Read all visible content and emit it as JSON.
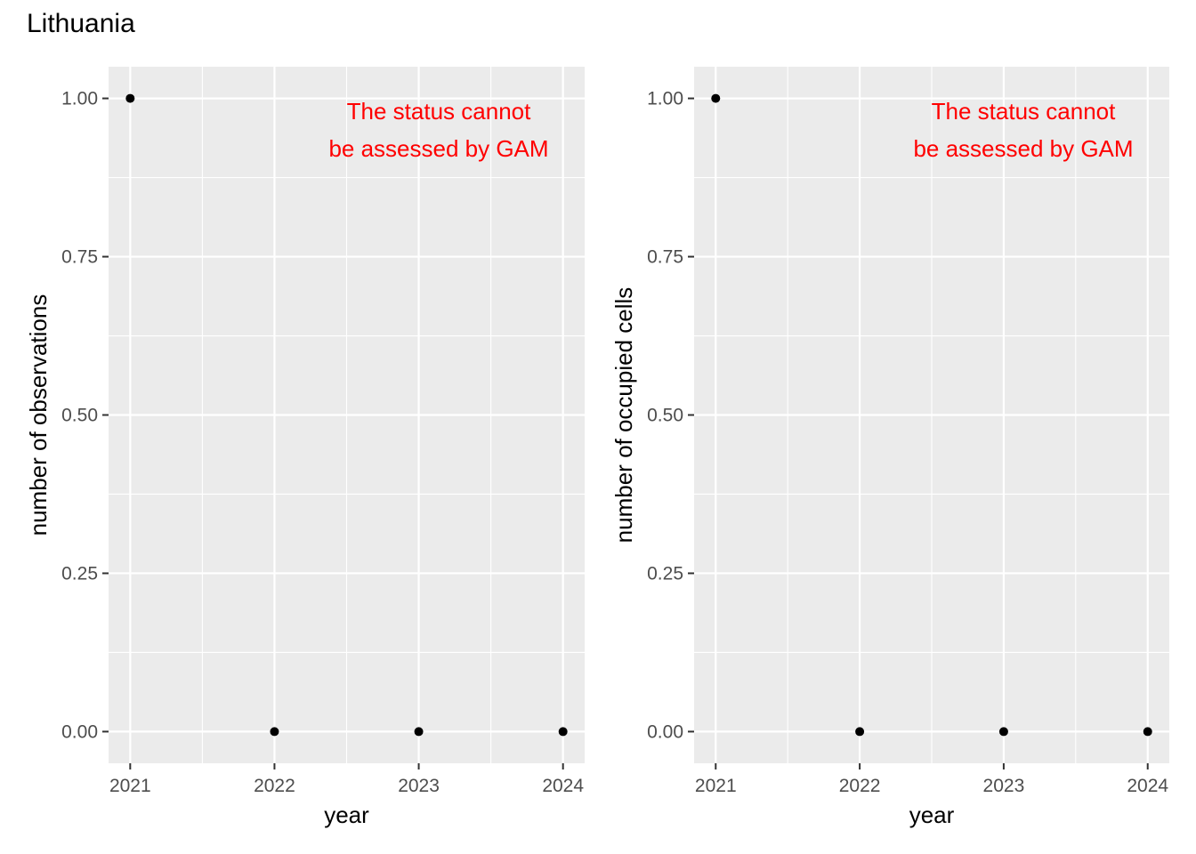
{
  "title": "Lithuania",
  "colors": {
    "panel_bg": "#EBEBEB",
    "grid": "#FFFFFF",
    "point": "#000000",
    "annotation": "#FF0000",
    "tick_text": "#4D4D4D"
  },
  "chart_data": [
    {
      "type": "scatter",
      "title": "",
      "xlabel": "year",
      "ylabel": "number of observations",
      "x": [
        2021,
        2022,
        2023,
        2024
      ],
      "y": [
        1,
        0,
        0,
        0
      ],
      "xticks": [
        "2021",
        "2022",
        "2023",
        "2024"
      ],
      "yticks": [
        "0.00",
        "0.25",
        "0.50",
        "0.75",
        "1.00"
      ],
      "xlim": [
        2020.85,
        2024.15
      ],
      "ylim": [
        -0.05,
        1.05
      ],
      "grid": true,
      "annotation": [
        "The status cannot",
        "be assessed by GAM"
      ]
    },
    {
      "type": "scatter",
      "title": "",
      "xlabel": "year",
      "ylabel": "number of occupied cells",
      "x": [
        2021,
        2022,
        2023,
        2024
      ],
      "y": [
        1,
        0,
        0,
        0
      ],
      "xticks": [
        "2021",
        "2022",
        "2023",
        "2024"
      ],
      "yticks": [
        "0.00",
        "0.25",
        "0.50",
        "0.75",
        "1.00"
      ],
      "xlim": [
        2020.85,
        2024.15
      ],
      "ylim": [
        -0.05,
        1.05
      ],
      "grid": true,
      "annotation": [
        "The status cannot",
        "be assessed by GAM"
      ]
    }
  ]
}
